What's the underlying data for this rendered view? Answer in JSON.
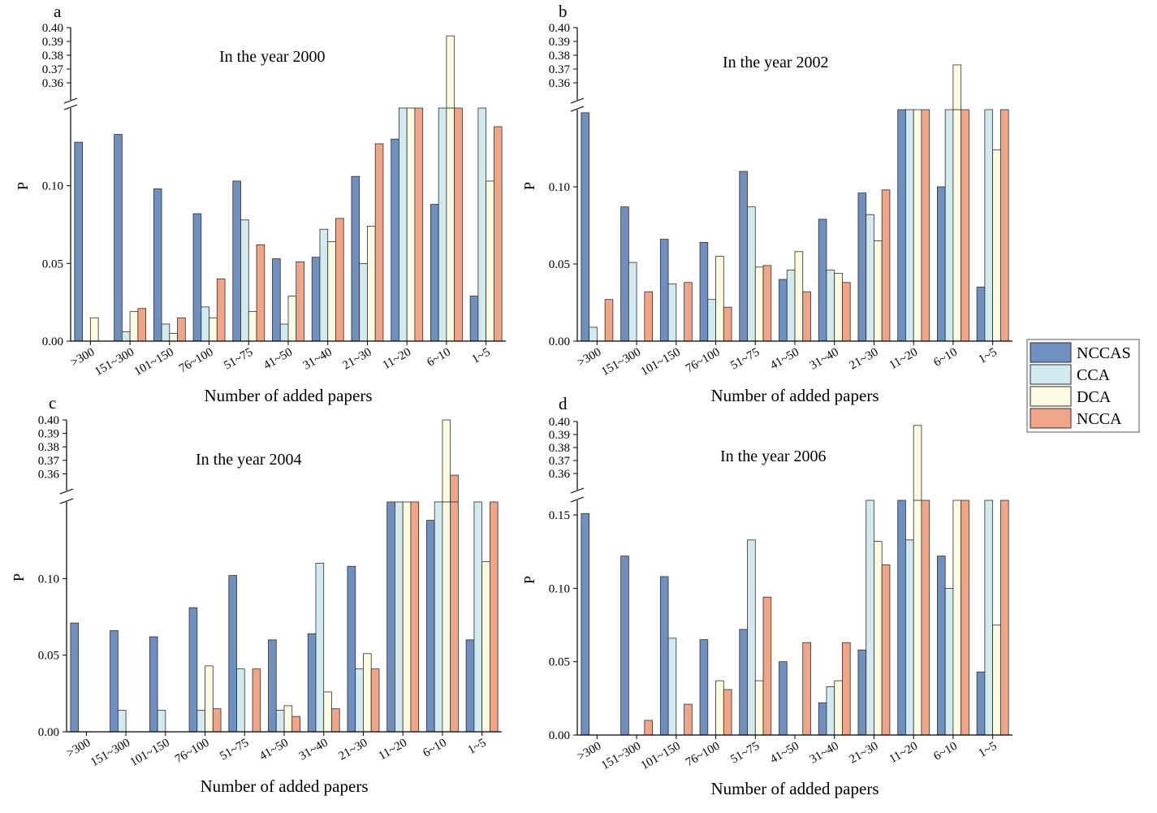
{
  "colors": {
    "NCCAS": "#6f8fbe",
    "CCA": "#d2eaee",
    "DCA": "#fbfbe2",
    "NCCA": "#f0a588"
  },
  "legend": [
    "NCCAS",
    "CCA",
    "DCA",
    "NCCA"
  ],
  "chart_data": [
    {
      "type": "bar",
      "panel": "a",
      "title": "In the year 2000",
      "xlabel": "Number of added papers",
      "ylabel": "P",
      "y_break": true,
      "ylim_lower": [
        0,
        0.15
      ],
      "ylim_upper": [
        0.35,
        0.4
      ],
      "yticks_lower": [
        "0.00",
        "0.05",
        "0.10"
      ],
      "yticks_upper": [
        "0.36",
        "0.37",
        "0.38",
        "0.39",
        "0.40"
      ],
      "categories": [
        ">300",
        "151~300",
        "101~150",
        "76~100",
        "51~75",
        "41~50",
        "31~40",
        "21~30",
        "11~20",
        "6~10",
        "1~5"
      ],
      "series": [
        {
          "name": "NCCAS",
          "values": [
            0.128,
            0.133,
            0.098,
            0.082,
            0.103,
            0.053,
            0.054,
            0.106,
            0.13,
            0.088,
            0.029
          ]
        },
        {
          "name": "CCA",
          "values": [
            0,
            0.006,
            0.011,
            0.022,
            0.078,
            0.011,
            0.072,
            0.05,
            0.2,
            0.2,
            0.2
          ]
        },
        {
          "name": "DCA",
          "values": [
            0.015,
            0.019,
            0.005,
            0.015,
            0.019,
            0.029,
            0.064,
            0.074,
            0.2,
            0.394,
            0.103
          ]
        },
        {
          "name": "NCCA",
          "values": [
            0,
            0.021,
            0.015,
            0.04,
            0.062,
            0.051,
            0.079,
            0.127,
            0.2,
            0.2,
            0.138
          ]
        }
      ]
    },
    {
      "type": "bar",
      "panel": "b",
      "title": "In the year 2002",
      "xlabel": "Number of added papers",
      "ylabel": "P",
      "y_break": true,
      "ylim_lower": [
        0,
        0.15
      ],
      "ylim_upper": [
        0.35,
        0.4
      ],
      "yticks_lower": [
        "0.00",
        "0.05",
        "0.10"
      ],
      "yticks_upper": [
        "0.36",
        "0.37",
        "0.38",
        "0.39",
        "0.40"
      ],
      "categories": [
        ">300",
        "151~300",
        "101~150",
        "76~100",
        "51~75",
        "41~50",
        "31~40",
        "21~30",
        "11~20",
        "6~10",
        "1~5"
      ],
      "series": [
        {
          "name": "NCCAS",
          "values": [
            0.148,
            0.087,
            0.066,
            0.064,
            0.11,
            0.04,
            0.079,
            0.096,
            0.2,
            0.1,
            0.035
          ]
        },
        {
          "name": "CCA",
          "values": [
            0.009,
            0.051,
            0.037,
            0.027,
            0.087,
            0.046,
            0.046,
            0.082,
            0.2,
            0.2,
            0.2
          ]
        },
        {
          "name": "DCA",
          "values": [
            0,
            0,
            0,
            0.055,
            0.048,
            0.058,
            0.044,
            0.065,
            0.2,
            0.373,
            0.124
          ]
        },
        {
          "name": "NCCA",
          "values": [
            0.027,
            0.032,
            0.038,
            0.022,
            0.049,
            0.032,
            0.038,
            0.098,
            0.2,
            0.2,
            0.2
          ]
        }
      ]
    },
    {
      "type": "bar",
      "panel": "c",
      "title": "In the year 2004",
      "xlabel": "Number of added papers",
      "ylabel": "P",
      "y_break": true,
      "ylim_lower": [
        0,
        0.15
      ],
      "ylim_upper": [
        0.35,
        0.4
      ],
      "yticks_lower": [
        "0.00",
        "0.05",
        "0.10"
      ],
      "yticks_upper": [
        "0.36",
        "0.37",
        "0.38",
        "0.39",
        "0.40"
      ],
      "categories": [
        ">300",
        "151~300",
        "101~150",
        "76~100",
        "51~75",
        "41~50",
        "31~40",
        "21~30",
        "11~20",
        "6~10",
        "1~5"
      ],
      "series": [
        {
          "name": "NCCAS",
          "values": [
            0.071,
            0.066,
            0.062,
            0.081,
            0.102,
            0.06,
            0.064,
            0.108,
            0.2,
            0.138,
            0.06
          ]
        },
        {
          "name": "CCA",
          "values": [
            0,
            0.014,
            0.014,
            0.014,
            0.041,
            0.014,
            0.11,
            0.041,
            0.2,
            0.2,
            0.2
          ]
        },
        {
          "name": "DCA",
          "values": [
            0,
            0,
            0,
            0.043,
            0,
            0.017,
            0.026,
            0.051,
            0.2,
            0.4,
            0.111
          ]
        },
        {
          "name": "NCCA",
          "values": [
            0,
            0,
            0,
            0.015,
            0.041,
            0.01,
            0.015,
            0.041,
            0.2,
            0.359,
            0.2
          ]
        }
      ]
    },
    {
      "type": "bar",
      "panel": "d",
      "title": "In the year 2006",
      "xlabel": "Number of added papers",
      "ylabel": "P",
      "y_break": true,
      "ylim_lower": [
        0,
        0.16
      ],
      "ylim_upper": [
        0.35,
        0.4
      ],
      "yticks_lower": [
        "0.00",
        "0.05",
        "0.10",
        "0.15"
      ],
      "yticks_upper": [
        "0.36",
        "0.37",
        "0.38",
        "0.39",
        "0.40"
      ],
      "categories": [
        ">300",
        "151~300",
        "101~150",
        "76~100",
        "51~75",
        "41~50",
        "31~40",
        "21~30",
        "11~20",
        "6~10",
        "1~5"
      ],
      "series": [
        {
          "name": "NCCAS",
          "values": [
            0.151,
            0.122,
            0.108,
            0.065,
            0.072,
            0.05,
            0.022,
            0.058,
            0.2,
            0.122,
            0.043
          ]
        },
        {
          "name": "CCA",
          "values": [
            0,
            0,
            0.066,
            0,
            0.133,
            0,
            0.033,
            0.2,
            0.133,
            0.1,
            0.2
          ]
        },
        {
          "name": "DCA",
          "values": [
            0,
            0,
            0,
            0.037,
            0.037,
            0,
            0.037,
            0.132,
            0.397,
            0.2,
            0.075
          ]
        },
        {
          "name": "NCCA",
          "values": [
            0,
            0.01,
            0.021,
            0.031,
            0.094,
            0.063,
            0.063,
            0.116,
            0.2,
            0.2,
            0.2
          ]
        }
      ]
    }
  ]
}
